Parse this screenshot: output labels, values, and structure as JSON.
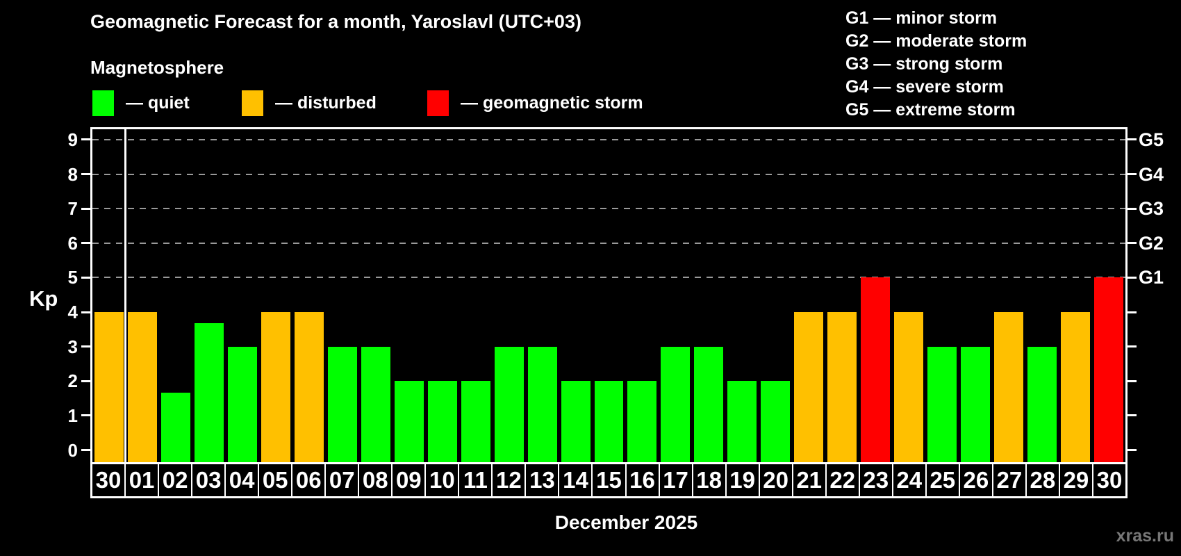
{
  "header": {
    "title": "Geomagnetic Forecast for a month, Yaroslavl (UTC+03)",
    "subtitle": "Magnetosphere"
  },
  "legend": {
    "items": [
      {
        "key": "quiet",
        "label": "— quiet",
        "color": "#00ff00"
      },
      {
        "key": "disturbed",
        "label": "— disturbed",
        "color": "#ffc000"
      },
      {
        "key": "storm",
        "label": "— geomagnetic storm",
        "color": "#ff0000"
      }
    ]
  },
  "g_scale_legend": {
    "lines": [
      "G1 — minor storm",
      "G2 — moderate storm",
      "G3 — strong storm",
      "G4 — severe storm",
      "G5 — extreme storm"
    ]
  },
  "watermark": "xras.ru",
  "chart_data": {
    "type": "bar",
    "title": "Geomagnetic Forecast for a month, Yaroslavl (UTC+03)",
    "ylabel": "Kp",
    "xlabel": "December 2025",
    "ylim": [
      -0.35,
      9.3
    ],
    "yticks": [
      0,
      1,
      2,
      3,
      4,
      5,
      6,
      7,
      8,
      9
    ],
    "dashed_gridlines_at": [
      5,
      6,
      7,
      8,
      9
    ],
    "grid_on": true,
    "right_axis_labels": [
      {
        "kp": 5,
        "label": "G1"
      },
      {
        "kp": 6,
        "label": "G2"
      },
      {
        "kp": 7,
        "label": "G3"
      },
      {
        "kp": 8,
        "label": "G4"
      },
      {
        "kp": 9,
        "label": "G5"
      }
    ],
    "categories": [
      "30",
      "01",
      "02",
      "03",
      "04",
      "05",
      "06",
      "07",
      "08",
      "09",
      "10",
      "11",
      "12",
      "13",
      "14",
      "15",
      "16",
      "17",
      "18",
      "19",
      "20",
      "21",
      "22",
      "23",
      "24",
      "25",
      "26",
      "27",
      "28",
      "29",
      "30"
    ],
    "values": [
      4,
      4,
      1.67,
      3.67,
      3,
      4,
      4,
      3,
      3,
      2,
      2,
      2,
      3,
      3,
      2,
      2,
      2,
      3,
      3,
      2,
      2,
      4,
      4,
      5,
      4,
      3,
      3,
      4,
      3,
      4,
      5
    ],
    "statuses": [
      "disturbed",
      "disturbed",
      "quiet",
      "quiet",
      "quiet",
      "disturbed",
      "disturbed",
      "quiet",
      "quiet",
      "quiet",
      "quiet",
      "quiet",
      "quiet",
      "quiet",
      "quiet",
      "quiet",
      "quiet",
      "quiet",
      "quiet",
      "quiet",
      "quiet",
      "disturbed",
      "disturbed",
      "storm",
      "disturbed",
      "quiet",
      "quiet",
      "disturbed",
      "quiet",
      "disturbed",
      "storm"
    ],
    "status_colors": {
      "quiet": "#00ff00",
      "disturbed": "#ffc000",
      "storm": "#ff0000"
    },
    "month_separator_after_index": 0,
    "grid_color": "#999999",
    "axis_color": "#ffffff",
    "background_color": "#000000"
  }
}
